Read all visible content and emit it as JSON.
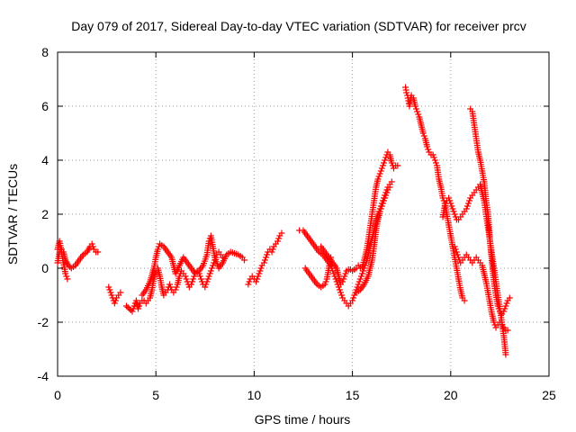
{
  "chart_data": {
    "type": "scatter",
    "title": "Day 079 of 2017, Sidereal Day-to-day VTEC variation (SDTVAR) for receiver prcv",
    "xlabel": "GPS time / hours",
    "ylabel": "SDTVAR / TECUs",
    "xlim": [
      0,
      25
    ],
    "ylim": [
      -4,
      8
    ],
    "xticks": [
      "0",
      "5",
      "10",
      "15",
      "20",
      "25"
    ],
    "yticks": [
      "-4",
      "-2",
      "0",
      "2",
      "4",
      "6",
      "8"
    ],
    "grid": true,
    "marker": "+",
    "color": "#ff0000",
    "segments": [
      [
        [
          0.0,
          0.7
        ],
        [
          0.1,
          1.0
        ],
        [
          0.2,
          0.6
        ],
        [
          0.3,
          0.2
        ],
        [
          0.4,
          -0.2
        ],
        [
          0.5,
          -0.4
        ]
      ],
      [
        [
          0.0,
          0.2
        ],
        [
          0.1,
          0.6
        ],
        [
          0.2,
          0.7
        ],
        [
          0.3,
          0.6
        ],
        [
          0.4,
          0.3
        ],
        [
          0.55,
          0.1
        ],
        [
          0.7,
          0.0
        ],
        [
          0.9,
          0.1
        ],
        [
          1.1,
          0.3
        ],
        [
          1.3,
          0.5
        ],
        [
          1.5,
          0.6
        ],
        [
          1.65,
          0.8
        ],
        [
          1.75,
          0.9
        ],
        [
          1.85,
          0.7
        ],
        [
          1.95,
          0.6
        ],
        [
          2.05,
          0.6
        ]
      ],
      [
        [
          2.6,
          -0.7
        ],
        [
          2.7,
          -0.9
        ],
        [
          2.8,
          -1.1
        ],
        [
          2.9,
          -1.3
        ],
        [
          3.0,
          -1.1
        ],
        [
          3.1,
          -1.0
        ],
        [
          3.2,
          -0.9
        ]
      ],
      [
        [
          3.5,
          -1.4
        ],
        [
          3.65,
          -1.5
        ],
        [
          3.8,
          -1.6
        ],
        [
          3.9,
          -1.4
        ],
        [
          4.0,
          -1.2
        ],
        [
          4.1,
          -1.5
        ],
        [
          4.2,
          -1.3
        ],
        [
          4.3,
          -1.2
        ],
        [
          4.4,
          -1.2
        ],
        [
          4.5,
          -1.3
        ],
        [
          4.6,
          -1.2
        ],
        [
          4.7,
          -1.1
        ],
        [
          4.8,
          -0.8
        ],
        [
          4.9,
          -0.4
        ],
        [
          5.0,
          -0.1
        ],
        [
          5.1,
          0.0
        ],
        [
          5.2,
          -0.3
        ],
        [
          5.3,
          -0.7
        ],
        [
          5.4,
          -1.0
        ],
        [
          5.5,
          -0.9
        ],
        [
          5.6,
          -0.8
        ],
        [
          5.7,
          -0.6
        ],
        [
          5.8,
          -0.8
        ],
        [
          5.9,
          -0.9
        ],
        [
          6.0,
          -0.8
        ],
        [
          6.1,
          -0.6
        ],
        [
          6.2,
          -0.3
        ],
        [
          6.3,
          -0.1
        ],
        [
          6.4,
          -0.2
        ],
        [
          6.5,
          -0.3
        ],
        [
          6.6,
          -0.5
        ],
        [
          6.7,
          -0.7
        ],
        [
          6.8,
          -0.6
        ],
        [
          6.9,
          -0.4
        ],
        [
          7.0,
          -0.2
        ],
        [
          7.1,
          -0.1
        ],
        [
          7.2,
          -0.2
        ],
        [
          7.3,
          -0.4
        ],
        [
          7.4,
          -0.6
        ],
        [
          7.5,
          -0.7
        ],
        [
          7.6,
          -0.5
        ],
        [
          7.7,
          -0.3
        ],
        [
          7.8,
          -0.1
        ],
        [
          7.9,
          0.1
        ],
        [
          8.0,
          0.3
        ],
        [
          8.1,
          0.5
        ],
        [
          8.2,
          0.6
        ],
        [
          8.3,
          0.5
        ],
        [
          8.4,
          0.4
        ]
      ],
      [
        [
          4.3,
          -1.0
        ],
        [
          4.5,
          -0.8
        ],
        [
          4.7,
          -0.5
        ],
        [
          4.9,
          0.0
        ],
        [
          5.0,
          0.4
        ],
        [
          5.1,
          0.7
        ],
        [
          5.2,
          0.9
        ],
        [
          5.4,
          0.8
        ],
        [
          5.6,
          0.6
        ],
        [
          5.8,
          0.4
        ],
        [
          5.9,
          0.1
        ],
        [
          6.0,
          -0.2
        ],
        [
          6.2,
          0.1
        ],
        [
          6.4,
          0.4
        ],
        [
          6.6,
          0.2
        ],
        [
          6.8,
          0.0
        ],
        [
          7.0,
          -0.2
        ],
        [
          7.2,
          -0.1
        ],
        [
          7.4,
          0.1
        ],
        [
          7.6,
          0.5
        ],
        [
          7.7,
          1.0
        ],
        [
          7.8,
          1.2
        ],
        [
          7.9,
          0.8
        ],
        [
          8.0,
          0.4
        ],
        [
          8.2,
          0.0
        ],
        [
          8.4,
          0.2
        ],
        [
          8.6,
          0.5
        ],
        [
          8.8,
          0.6
        ],
        [
          9.0,
          0.55
        ],
        [
          9.2,
          0.5
        ],
        [
          9.4,
          0.4
        ],
        [
          9.5,
          0.3
        ]
      ],
      [
        [
          9.7,
          -0.6
        ],
        [
          9.8,
          -0.4
        ],
        [
          9.9,
          -0.3
        ],
        [
          10.0,
          -0.4
        ],
        [
          10.1,
          -0.5
        ],
        [
          10.2,
          -0.3
        ],
        [
          10.3,
          -0.1
        ],
        [
          10.4,
          0.1
        ],
        [
          10.5,
          0.2
        ],
        [
          10.6,
          0.4
        ],
        [
          10.7,
          0.6
        ],
        [
          10.8,
          0.7
        ],
        [
          10.9,
          0.6
        ],
        [
          11.0,
          0.8
        ],
        [
          11.1,
          0.9
        ],
        [
          11.2,
          1.0
        ],
        [
          11.3,
          1.2
        ],
        [
          11.4,
          1.3
        ]
      ],
      [
        [
          12.3,
          1.4
        ],
        [
          12.5,
          1.4
        ],
        [
          12.7,
          1.2
        ],
        [
          12.9,
          1.0
        ],
        [
          13.1,
          0.8
        ],
        [
          13.3,
          0.6
        ],
        [
          13.5,
          0.5
        ],
        [
          13.7,
          0.3
        ],
        [
          13.9,
          0.1
        ],
        [
          14.0,
          -0.1
        ],
        [
          14.1,
          -0.3
        ],
        [
          14.2,
          -0.5
        ],
        [
          14.3,
          -0.7
        ],
        [
          14.4,
          -0.9
        ],
        [
          14.5,
          -1.1
        ],
        [
          14.6,
          -1.2
        ],
        [
          14.7,
          -1.3
        ],
        [
          14.8,
          -1.4
        ],
        [
          14.9,
          -1.3
        ],
        [
          15.0,
          -1.2
        ],
        [
          15.1,
          -1.0
        ],
        [
          15.2,
          -0.8
        ],
        [
          15.3,
          -0.6
        ],
        [
          15.4,
          -0.4
        ],
        [
          15.5,
          -0.2
        ],
        [
          15.6,
          0.0
        ],
        [
          15.7,
          0.2
        ],
        [
          15.8,
          0.5
        ],
        [
          15.9,
          0.8
        ],
        [
          16.0,
          1.1
        ],
        [
          16.1,
          1.4
        ],
        [
          16.2,
          1.7
        ],
        [
          16.3,
          2.0
        ],
        [
          16.4,
          2.2
        ],
        [
          16.5,
          2.4
        ],
        [
          16.6,
          2.6
        ],
        [
          16.7,
          2.8
        ],
        [
          16.8,
          3.0
        ],
        [
          16.9,
          3.1
        ],
        [
          17.0,
          3.2
        ]
      ],
      [
        [
          12.6,
          0.0
        ],
        [
          12.8,
          -0.2
        ],
        [
          13.0,
          -0.4
        ],
        [
          13.2,
          -0.6
        ],
        [
          13.4,
          -0.7
        ],
        [
          13.6,
          -0.6
        ],
        [
          13.7,
          -0.4
        ],
        [
          13.8,
          0.0
        ],
        [
          13.9,
          0.4
        ]
      ],
      [
        [
          13.4,
          0.8
        ],
        [
          13.6,
          0.6
        ],
        [
          13.8,
          0.4
        ],
        [
          14.0,
          0.2
        ],
        [
          14.2,
          0.0
        ],
        [
          14.3,
          -0.3
        ],
        [
          14.4,
          -0.6
        ],
        [
          14.5,
          -0.5
        ],
        [
          14.6,
          -0.3
        ],
        [
          14.7,
          -0.1
        ],
        [
          14.8,
          -0.05
        ],
        [
          14.9,
          -0.05
        ],
        [
          15.0,
          -0.1
        ],
        [
          15.1,
          -0.05
        ],
        [
          15.2,
          0.0
        ],
        [
          15.3,
          0.1
        ],
        [
          15.4,
          0.0
        ],
        [
          15.5,
          0.05
        ],
        [
          15.6,
          0.3
        ],
        [
          15.7,
          0.6
        ],
        [
          15.8,
          1.0
        ],
        [
          15.9,
          1.5
        ],
        [
          16.0,
          2.0
        ],
        [
          16.1,
          2.5
        ],
        [
          16.2,
          3.0
        ],
        [
          16.3,
          3.3
        ],
        [
          16.4,
          3.5
        ],
        [
          16.5,
          3.7
        ],
        [
          16.6,
          3.9
        ],
        [
          16.7,
          4.1
        ],
        [
          16.8,
          4.3
        ],
        [
          16.9,
          4.2
        ],
        [
          17.0,
          3.9
        ],
        [
          17.1,
          3.7
        ],
        [
          17.2,
          3.8
        ],
        [
          17.3,
          3.8
        ]
      ],
      [
        [
          15.2,
          -0.9
        ],
        [
          15.4,
          -0.8
        ],
        [
          15.6,
          -0.6
        ],
        [
          15.8,
          -0.3
        ],
        [
          16.0,
          0.3
        ],
        [
          16.1,
          0.8
        ],
        [
          16.2,
          1.4
        ],
        [
          16.3,
          1.8
        ],
        [
          16.4,
          2.1
        ],
        [
          16.5,
          2.3
        ],
        [
          16.6,
          2.5
        ],
        [
          16.7,
          2.7
        ],
        [
          16.8,
          2.9
        ],
        [
          16.9,
          3.0
        ]
      ],
      [
        [
          17.7,
          6.7
        ],
        [
          17.75,
          6.5
        ],
        [
          17.8,
          6.4
        ],
        [
          17.85,
          6.2
        ],
        [
          17.9,
          6.0
        ],
        [
          18.0,
          6.4
        ],
        [
          18.1,
          6.3
        ],
        [
          18.2,
          6.0
        ],
        [
          18.3,
          5.8
        ],
        [
          18.4,
          5.6
        ],
        [
          18.5,
          5.3
        ],
        [
          18.6,
          5.0
        ],
        [
          18.7,
          4.8
        ],
        [
          18.8,
          4.5
        ],
        [
          18.9,
          4.3
        ],
        [
          19.0,
          4.2
        ],
        [
          19.1,
          4.2
        ],
        [
          19.2,
          4.0
        ],
        [
          19.3,
          3.8
        ],
        [
          19.4,
          3.3
        ],
        [
          19.5,
          3.0
        ],
        [
          19.6,
          2.6
        ],
        [
          19.7,
          2.4
        ],
        [
          19.8,
          2.0
        ],
        [
          19.9,
          1.6
        ],
        [
          20.0,
          1.2
        ],
        [
          20.1,
          0.8
        ],
        [
          20.2,
          0.4
        ],
        [
          20.3,
          0.0
        ],
        [
          20.4,
          -0.4
        ],
        [
          20.5,
          -0.8
        ],
        [
          20.6,
          -1.1
        ],
        [
          20.7,
          -1.2
        ]
      ],
      [
        [
          19.6,
          1.9
        ],
        [
          19.7,
          2.3
        ],
        [
          19.8,
          2.5
        ],
        [
          19.9,
          2.6
        ],
        [
          20.0,
          2.4
        ],
        [
          20.1,
          2.2
        ],
        [
          20.2,
          2.0
        ],
        [
          20.3,
          1.8
        ],
        [
          20.4,
          1.8
        ],
        [
          20.5,
          1.9
        ],
        [
          20.6,
          2.0
        ],
        [
          20.7,
          2.1
        ],
        [
          20.8,
          2.2
        ],
        [
          20.9,
          2.4
        ],
        [
          21.0,
          2.6
        ],
        [
          21.1,
          2.7
        ],
        [
          21.2,
          2.8
        ],
        [
          21.3,
          2.9
        ],
        [
          21.4,
          3.0
        ],
        [
          21.5,
          3.1
        ],
        [
          21.6,
          2.8
        ],
        [
          21.7,
          2.5
        ],
        [
          21.8,
          2.0
        ],
        [
          21.9,
          1.5
        ],
        [
          22.0,
          1.0
        ],
        [
          22.1,
          0.5
        ],
        [
          22.2,
          0.0
        ],
        [
          22.3,
          -0.5
        ],
        [
          22.4,
          -1.0
        ],
        [
          22.5,
          -1.5
        ],
        [
          22.6,
          -2.0
        ],
        [
          22.7,
          -2.5
        ],
        [
          22.8,
          -3.2
        ]
      ],
      [
        [
          20.2,
          0.8
        ],
        [
          20.3,
          0.6
        ],
        [
          20.4,
          0.4
        ],
        [
          20.5,
          0.2
        ],
        [
          20.6,
          0.3
        ],
        [
          20.7,
          0.4
        ],
        [
          20.8,
          0.5
        ],
        [
          20.9,
          0.4
        ],
        [
          21.0,
          0.3
        ],
        [
          21.1,
          0.2
        ],
        [
          21.2,
          0.3
        ],
        [
          21.3,
          0.4
        ],
        [
          21.4,
          0.3
        ],
        [
          21.5,
          0.2
        ],
        [
          21.6,
          0.1
        ],
        [
          21.7,
          -0.2
        ],
        [
          21.8,
          -0.5
        ],
        [
          21.9,
          -0.9
        ],
        [
          22.0,
          -1.3
        ],
        [
          22.1,
          -1.7
        ],
        [
          22.2,
          -2.0
        ],
        [
          22.3,
          -2.2
        ],
        [
          22.4,
          -2.1
        ],
        [
          22.5,
          -2.0
        ],
        [
          22.6,
          -2.1
        ],
        [
          22.7,
          -2.2
        ],
        [
          22.8,
          -2.3
        ],
        [
          22.9,
          -2.3
        ]
      ],
      [
        [
          21.0,
          5.9
        ],
        [
          21.1,
          5.8
        ],
        [
          21.2,
          5.3
        ],
        [
          21.3,
          4.8
        ],
        [
          21.4,
          4.3
        ],
        [
          21.5,
          4.0
        ],
        [
          21.6,
          3.6
        ],
        [
          21.7,
          3.2
        ],
        [
          21.8,
          2.5
        ],
        [
          21.9,
          2.0
        ],
        [
          22.0,
          1.0
        ],
        [
          22.1,
          0.2
        ],
        [
          22.2,
          -0.5
        ],
        [
          22.3,
          -1.0
        ],
        [
          22.4,
          -1.4
        ],
        [
          22.5,
          -1.6
        ],
        [
          22.6,
          -1.7
        ],
        [
          22.7,
          -1.6
        ],
        [
          22.8,
          -1.4
        ],
        [
          22.9,
          -1.2
        ],
        [
          23.0,
          -1.1
        ]
      ]
    ]
  }
}
